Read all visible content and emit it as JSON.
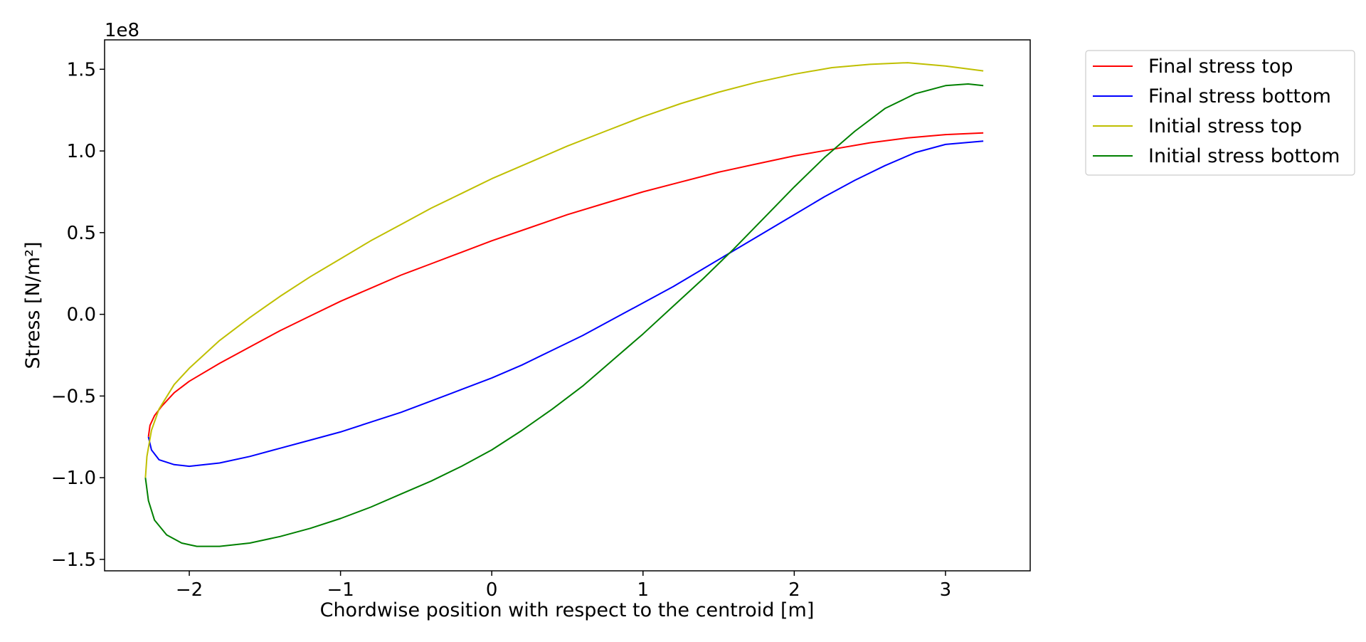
{
  "chart_data": {
    "type": "line",
    "title": "",
    "xlabel": "Chordwise position with respect to the centroid [m]",
    "ylabel": "Stress [N/m²]",
    "y_offset_label": "1e8",
    "xlim": [
      -2.56,
      3.56
    ],
    "ylim": [
      -1.57,
      1.68
    ],
    "y_scale_factor": 100000000,
    "x_ticks": [
      -2,
      -1,
      0,
      1,
      2,
      3
    ],
    "x_tick_labels": [
      "−2",
      "−1",
      "0",
      "1",
      "2",
      "3"
    ],
    "y_ticks": [
      -1.5,
      -1.0,
      -0.5,
      0.0,
      0.5,
      1.0,
      1.5
    ],
    "y_tick_labels": [
      "−1.5",
      "−1.0",
      "−0.5",
      "0.0",
      "0.5",
      "1.0",
      "1.5"
    ],
    "grid": false,
    "legend_position": "outside-right-top",
    "series": [
      {
        "name": "Final stress top",
        "color": "#ff0000",
        "x": [
          -2.27,
          -2.26,
          -2.23,
          -2.18,
          -2.1,
          -2.0,
          -1.8,
          -1.6,
          -1.4,
          -1.2,
          -1.0,
          -0.8,
          -0.6,
          -0.4,
          -0.2,
          0.0,
          0.25,
          0.5,
          0.75,
          1.0,
          1.25,
          1.5,
          1.75,
          2.0,
          2.25,
          2.5,
          2.75,
          3.0,
          3.25
        ],
        "y": [
          -0.75,
          -0.68,
          -0.62,
          -0.56,
          -0.48,
          -0.41,
          -0.3,
          -0.2,
          -0.1,
          -0.01,
          0.08,
          0.16,
          0.24,
          0.31,
          0.38,
          0.45,
          0.53,
          0.61,
          0.68,
          0.75,
          0.81,
          0.87,
          0.92,
          0.97,
          1.01,
          1.05,
          1.08,
          1.1,
          1.11
        ]
      },
      {
        "name": "Final stress bottom",
        "color": "#0000ff",
        "x": [
          -2.27,
          -2.25,
          -2.2,
          -2.1,
          -2.0,
          -1.8,
          -1.6,
          -1.4,
          -1.2,
          -1.0,
          -0.8,
          -0.6,
          -0.4,
          -0.2,
          0.0,
          0.2,
          0.4,
          0.6,
          0.8,
          1.0,
          1.2,
          1.4,
          1.6,
          1.8,
          2.0,
          2.2,
          2.4,
          2.6,
          2.8,
          3.0,
          3.25
        ],
        "y": [
          -0.75,
          -0.83,
          -0.89,
          -0.92,
          -0.93,
          -0.91,
          -0.87,
          -0.82,
          -0.77,
          -0.72,
          -0.66,
          -0.6,
          -0.53,
          -0.46,
          -0.39,
          -0.31,
          -0.22,
          -0.13,
          -0.03,
          0.07,
          0.17,
          0.28,
          0.39,
          0.5,
          0.61,
          0.72,
          0.82,
          0.91,
          0.99,
          1.04,
          1.06
        ]
      },
      {
        "name": "Initial stress top",
        "color": "#bfbf00",
        "x": [
          -2.29,
          -2.28,
          -2.25,
          -2.2,
          -2.1,
          -2.0,
          -1.8,
          -1.6,
          -1.4,
          -1.2,
          -1.0,
          -0.8,
          -0.6,
          -0.4,
          -0.2,
          0.0,
          0.25,
          0.5,
          0.75,
          1.0,
          1.25,
          1.5,
          1.75,
          2.0,
          2.25,
          2.5,
          2.75,
          3.0,
          3.25
        ],
        "y": [
          -1.0,
          -0.87,
          -0.71,
          -0.58,
          -0.43,
          -0.33,
          -0.16,
          -0.02,
          0.11,
          0.23,
          0.34,
          0.45,
          0.55,
          0.65,
          0.74,
          0.83,
          0.93,
          1.03,
          1.12,
          1.21,
          1.29,
          1.36,
          1.42,
          1.47,
          1.51,
          1.53,
          1.54,
          1.52,
          1.49
        ]
      },
      {
        "name": "Initial stress bottom",
        "color": "#008000",
        "x": [
          -2.29,
          -2.27,
          -2.23,
          -2.15,
          -2.05,
          -1.95,
          -1.8,
          -1.6,
          -1.4,
          -1.2,
          -1.0,
          -0.8,
          -0.6,
          -0.4,
          -0.2,
          0.0,
          0.2,
          0.4,
          0.6,
          0.8,
          1.0,
          1.2,
          1.4,
          1.6,
          1.8,
          2.0,
          2.2,
          2.4,
          2.6,
          2.8,
          3.0,
          3.15,
          3.25
        ],
        "y": [
          -1.0,
          -1.14,
          -1.26,
          -1.35,
          -1.4,
          -1.42,
          -1.42,
          -1.4,
          -1.36,
          -1.31,
          -1.25,
          -1.18,
          -1.1,
          -1.02,
          -0.93,
          -0.83,
          -0.71,
          -0.58,
          -0.44,
          -0.28,
          -0.12,
          0.05,
          0.22,
          0.4,
          0.59,
          0.78,
          0.96,
          1.12,
          1.26,
          1.35,
          1.4,
          1.41,
          1.4
        ]
      }
    ]
  }
}
